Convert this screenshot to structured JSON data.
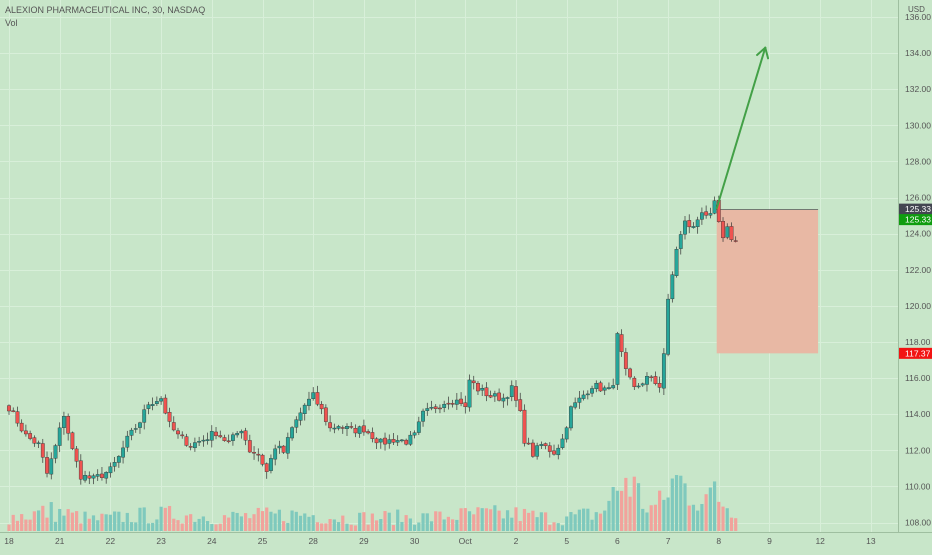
{
  "header": {
    "title": "ALEXION PHARMACEUTICAL INC, 30, NASDAQ",
    "volume_label": "Vol",
    "currency": "USD"
  },
  "colors": {
    "background": "#c8e6c9",
    "up": "#26a69a",
    "down": "#ef5350",
    "volume_up": "#7fc9bd",
    "volume_down": "#f1a39c",
    "arrow": "#43a047",
    "zone_fill": "#e8b8a4",
    "price_label_dark": "#434651",
    "price_label_green": "#0f9d0f",
    "price_label_red": "#f21313",
    "grid": "#d8efd9"
  },
  "chart_data": {
    "type": "candlestick",
    "title": "ALEXION PHARMACEUTICAL INC, 30, NASDAQ",
    "interval": "30",
    "exchange": "NASDAQ",
    "y_axis": {
      "position": "right",
      "currency": "USD",
      "ylim": [
        107.6,
        136.6
      ],
      "ticks": [
        108.0,
        110.0,
        112.0,
        114.0,
        116.0,
        118.0,
        120.0,
        122.0,
        124.0,
        126.0,
        128.0,
        130.0,
        132.0,
        134.0,
        136.0
      ]
    },
    "x_axis": {
      "tick_labels": [
        "18",
        "21",
        "22",
        "23",
        "24",
        "25",
        "28",
        "29",
        "30",
        "Oct",
        "2",
        "5",
        "6",
        "7",
        "8",
        "9",
        "12",
        "13"
      ],
      "tick_bar_index": [
        0,
        12,
        24,
        36,
        48,
        60,
        72,
        84,
        96,
        108,
        120,
        132,
        144,
        156,
        168,
        180,
        192,
        204
      ]
    },
    "grid": true,
    "price_labels": [
      {
        "value": "125.33",
        "style": "dark"
      },
      {
        "value": "125.33",
        "style": "green"
      },
      {
        "value": "117.37",
        "style": "red"
      }
    ],
    "annotations": {
      "stop_zone": {
        "from_bar": 167.5,
        "to_bar": 191.5,
        "top": 125.33,
        "bottom": 117.37
      },
      "projection_arrow": {
        "from_bar": 167.5,
        "from_price": 125.4,
        "to_bar": 179,
        "to_price": 134.3
      }
    },
    "volume_scale_max": 100,
    "series": [
      {
        "name": "Price",
        "key_points": [
          [
            0,
            114.4
          ],
          [
            2,
            113.6
          ],
          [
            4,
            112.8
          ],
          [
            7,
            112.3
          ],
          [
            9,
            110.7
          ],
          [
            11,
            112.2
          ],
          [
            13,
            114.0
          ],
          [
            15,
            112.0
          ],
          [
            17,
            110.6
          ],
          [
            20,
            110.4
          ],
          [
            24,
            110.9
          ],
          [
            26,
            111.6
          ],
          [
            28,
            112.6
          ],
          [
            31,
            113.6
          ],
          [
            33,
            114.6
          ],
          [
            36,
            114.9
          ],
          [
            38,
            113.4
          ],
          [
            40,
            112.8
          ],
          [
            43,
            112.3
          ],
          [
            46,
            112.6
          ],
          [
            49,
            113.0
          ],
          [
            52,
            112.4
          ],
          [
            55,
            113.2
          ],
          [
            57,
            112.0
          ],
          [
            59,
            111.8
          ],
          [
            61,
            110.8
          ],
          [
            63,
            112.2
          ],
          [
            65,
            111.9
          ],
          [
            67,
            113.2
          ],
          [
            70,
            114.5
          ],
          [
            72,
            115.0
          ],
          [
            74,
            114.2
          ],
          [
            76,
            113.2
          ],
          [
            78,
            113.4
          ],
          [
            81,
            113.1
          ],
          [
            84,
            113.2
          ],
          [
            86,
            112.8
          ],
          [
            88,
            112.4
          ],
          [
            91,
            112.6
          ],
          [
            94,
            112.5
          ],
          [
            96,
            112.8
          ],
          [
            98,
            114.0
          ],
          [
            101,
            114.4
          ],
          [
            104,
            114.8
          ],
          [
            107,
            114.7
          ],
          [
            108,
            114.3
          ],
          [
            109,
            115.9
          ],
          [
            111,
            115.4
          ],
          [
            114,
            115.0
          ],
          [
            117,
            114.9
          ],
          [
            119,
            115.4
          ],
          [
            121,
            114.0
          ],
          [
            122,
            112.6
          ],
          [
            124,
            111.8
          ],
          [
            126,
            112.3
          ],
          [
            129,
            111.9
          ],
          [
            131,
            112.6
          ],
          [
            133,
            114.3
          ],
          [
            135,
            114.8
          ],
          [
            138,
            115.6
          ],
          [
            142,
            115.3
          ],
          [
            143,
            115.8
          ],
          [
            144,
            118.3
          ],
          [
            146,
            116.3
          ],
          [
            148,
            115.4
          ],
          [
            151,
            116.0
          ],
          [
            154,
            115.6
          ],
          [
            155,
            117.4
          ],
          [
            156,
            120.2
          ],
          [
            158,
            123.2
          ],
          [
            160,
            124.6
          ],
          [
            162,
            124.3
          ],
          [
            164,
            125.3
          ],
          [
            166,
            124.9
          ],
          [
            167,
            125.6
          ],
          [
            168,
            124.6
          ],
          [
            169,
            123.6
          ],
          [
            170,
            124.2
          ],
          [
            171,
            123.8
          ],
          [
            172,
            123.6
          ]
        ]
      },
      {
        "name": "Vol",
        "key_points": [
          [
            0,
            18
          ],
          [
            10,
            26
          ],
          [
            20,
            15
          ],
          [
            30,
            20
          ],
          [
            40,
            22
          ],
          [
            50,
            18
          ],
          [
            60,
            20
          ],
          [
            70,
            22
          ],
          [
            80,
            17
          ],
          [
            90,
            18
          ],
          [
            100,
            18
          ],
          [
            110,
            22
          ],
          [
            120,
            22
          ],
          [
            130,
            16
          ],
          [
            140,
            24
          ],
          [
            144,
            52
          ],
          [
            146,
            70
          ],
          [
            148,
            58
          ],
          [
            150,
            38
          ],
          [
            152,
            30
          ],
          [
            155,
            38
          ],
          [
            156,
            56
          ],
          [
            158,
            68
          ],
          [
            160,
            58
          ],
          [
            162,
            52
          ],
          [
            164,
            44
          ],
          [
            166,
            40
          ],
          [
            167,
            56
          ],
          [
            168,
            44
          ],
          [
            170,
            34
          ],
          [
            172,
            28
          ]
        ]
      }
    ]
  }
}
